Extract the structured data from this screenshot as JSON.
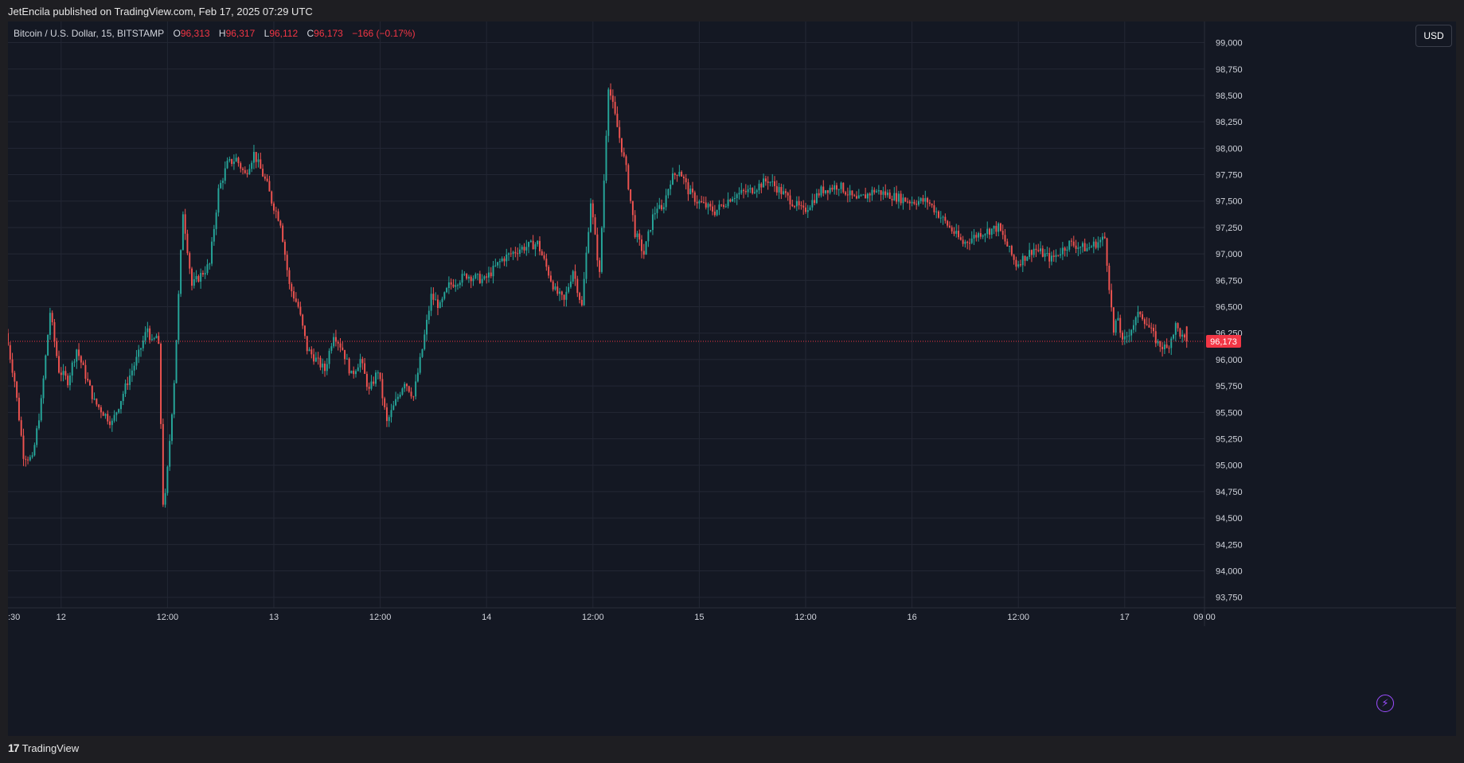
{
  "header": {
    "published_text": "JetEncila published on TradingView.com, Feb 17, 2025 07:29 UTC"
  },
  "legend": {
    "symbol": "Bitcoin / U.S. Dollar, 15, BITSTAMP",
    "open_label": "O",
    "open": "96,313",
    "high_label": "H",
    "high": "96,317",
    "low_label": "L",
    "low": "96,112",
    "close_label": "C",
    "close": "96,173",
    "change": "−166 (−0.17%)"
  },
  "toolbar": {
    "currency": "USD"
  },
  "footer": {
    "brand": "TradingView",
    "brand_mark": "17"
  },
  "colors": {
    "background": "#141823",
    "grid": "#232734",
    "up": "#26a69a",
    "down": "#ef5350",
    "price_line": "#f23645",
    "axis_text": "#d1d4dc"
  },
  "icons": {
    "currency": "usd-button",
    "flash": "lightning-icon"
  },
  "chart_data": {
    "type": "candlestick",
    "timeframe": "15",
    "current_price": 96173,
    "current_price_label": "96,173",
    "y_ticks": [
      93750,
      94000,
      94250,
      94500,
      94750,
      95000,
      95250,
      95500,
      95750,
      96000,
      96250,
      96500,
      96750,
      97000,
      97250,
      97500,
      97750,
      98000,
      98250,
      98500,
      98750,
      99000
    ],
    "y_tick_labels": [
      "93,750",
      "94,000",
      "94,250",
      "94,500",
      "94,750",
      "95,000",
      "95,250",
      "95,500",
      "95,750",
      "96,000",
      "96,250",
      "96,500",
      "96,750",
      "97,000",
      "97,250",
      "97,500",
      "97,750",
      "98,000",
      "98,250",
      "98,500",
      "98,750",
      "99,000"
    ],
    "ylim": [
      93650,
      99200
    ],
    "x_ticks": [
      {
        "label": ":30",
        "t": 0.0
      },
      {
        "label": "12",
        "t": 6.0
      },
      {
        "label": "12:00",
        "t": 18.0
      },
      {
        "label": "13",
        "t": 30.0
      },
      {
        "label": "12:00",
        "t": 42.0
      },
      {
        "label": "14",
        "t": 54.0
      },
      {
        "label": "12:00",
        "t": 66.0
      },
      {
        "label": "15",
        "t": 78.0
      },
      {
        "label": "12:00",
        "t": 90.0
      },
      {
        "label": "16",
        "t": 102.0
      },
      {
        "label": "12:00",
        "t": 114.0
      },
      {
        "label": "17",
        "t": 126.0
      },
      {
        "label": "09:00",
        "t": 135.0
      }
    ],
    "path_hours": [
      0,
      1,
      2,
      3,
      4,
      5,
      6,
      7,
      8,
      10,
      12,
      14,
      15,
      16,
      16.5,
      17.2,
      17.5,
      17.8,
      18.2,
      19,
      20,
      21,
      23,
      24,
      25,
      26,
      27,
      28,
      29.5,
      30,
      31,
      32,
      33,
      34,
      35,
      36,
      37,
      38,
      39,
      40,
      41,
      42,
      43,
      44,
      45,
      46,
      47,
      48,
      49,
      50,
      52,
      54,
      56,
      58,
      60,
      62,
      63,
      64,
      65,
      66,
      67,
      68,
      69,
      70,
      71,
      72,
      73,
      73.5,
      74,
      75,
      76,
      77,
      78,
      79,
      80,
      82,
      84,
      86,
      88,
      90,
      92,
      94,
      96,
      98,
      100,
      102,
      104,
      106,
      108,
      110,
      112,
      114,
      116,
      118,
      120,
      122,
      124,
      124.5,
      125,
      125.5,
      126,
      128,
      130,
      131,
      132,
      133
    ],
    "path_prices": [
      96250,
      95800,
      95100,
      95050,
      95600,
      96450,
      95900,
      95800,
      96100,
      95600,
      95400,
      95850,
      96050,
      96300,
      96150,
      96250,
      95400,
      94500,
      94900,
      95800,
      97400,
      96700,
      96900,
      97600,
      97850,
      97900,
      97750,
      97950,
      97650,
      97500,
      97300,
      96700,
      96500,
      96100,
      96000,
      95900,
      96250,
      96100,
      95850,
      96000,
      95700,
      95900,
      95400,
      95600,
      95800,
      95650,
      96100,
      96600,
      96500,
      96700,
      96800,
      96750,
      96950,
      97050,
      97100,
      96650,
      96550,
      96850,
      96500,
      97500,
      96800,
      98600,
      98200,
      97800,
      97200,
      97000,
      97350,
      97450,
      97400,
      97700,
      97800,
      97600,
      97500,
      97450,
      97400,
      97550,
      97600,
      97700,
      97550,
      97400,
      97600,
      97650,
      97500,
      97600,
      97550,
      97500,
      97500,
      97300,
      97100,
      97200,
      97250,
      96900,
      97050,
      96950,
      97100,
      97050,
      97150,
      96700,
      96250,
      96400,
      96150,
      96450,
      96150,
      96100,
      96320,
      96173
    ]
  }
}
